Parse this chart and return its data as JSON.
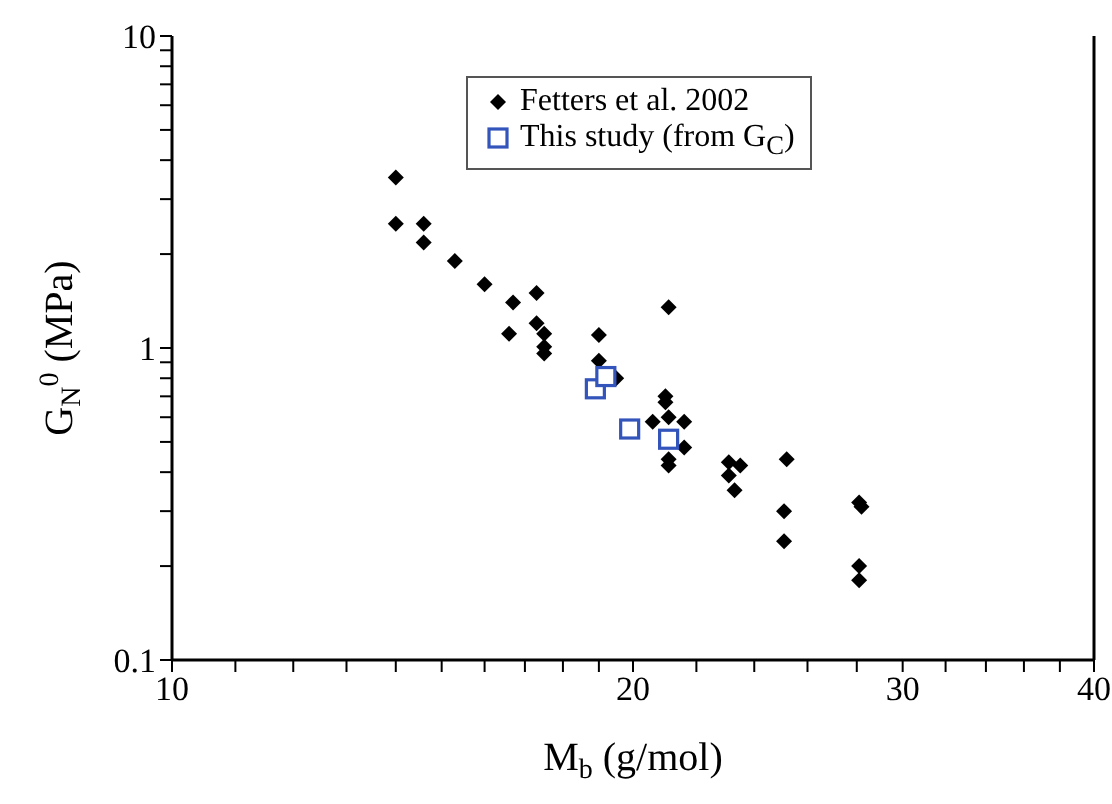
{
  "chart_data": {
    "type": "scatter",
    "xlabel": "M$_{b}$ (g/mol)",
    "ylabel": "G$_{N}$$^{0}$ (MPa)",
    "log": "xy",
    "xlim": [
      10,
      40
    ],
    "ylim": [
      0.1,
      10
    ],
    "xticks": [
      10,
      {
        "value": 11,
        "label": null
      },
      {
        "value": 12,
        "label": null
      },
      {
        "value": 13,
        "label": null
      },
      {
        "value": 14,
        "label": null
      },
      {
        "value": 15,
        "label": null
      },
      {
        "value": 16,
        "label": null
      },
      {
        "value": 17,
        "label": null
      },
      {
        "value": 18,
        "label": null
      },
      {
        "value": 19,
        "label": null
      },
      20,
      {
        "value": 22,
        "label": null
      },
      {
        "value": 24,
        "label": null
      },
      {
        "value": 26,
        "label": null
      },
      {
        "value": 28,
        "label": null
      },
      30,
      {
        "value": 32,
        "label": null
      },
      {
        "value": 34,
        "label": null
      },
      {
        "value": 36,
        "label": null
      },
      {
        "value": 38,
        "label": null
      },
      40
    ],
    "yticks": [
      0.1,
      {
        "value": 0.2,
        "label": null
      },
      {
        "value": 0.3,
        "label": null
      },
      {
        "value": 0.4,
        "label": null
      },
      {
        "value": 0.5,
        "label": null
      },
      {
        "value": 0.6,
        "label": null
      },
      {
        "value": 0.7,
        "label": null
      },
      {
        "value": 0.8,
        "label": null
      },
      {
        "value": 0.9,
        "label": null
      },
      1,
      {
        "value": 2,
        "label": null
      },
      {
        "value": 3,
        "label": null
      },
      {
        "value": 4,
        "label": null
      },
      {
        "value": 5,
        "label": null
      },
      {
        "value": 6,
        "label": null
      },
      {
        "value": 7,
        "label": null
      },
      {
        "value": 8,
        "label": null
      },
      {
        "value": 9,
        "label": null
      },
      10
    ],
    "grid": false,
    "legend": "top",
    "series": [
      {
        "name": "Fetters et al. 2002",
        "color": "#000000",
        "marker": "diamond",
        "x": [
          14.0,
          14.0,
          14.6,
          14.6,
          15.3,
          16.0,
          16.7,
          16.6,
          17.3,
          17.3,
          17.5,
          17.5,
          17.5,
          19.0,
          19.0,
          19.5,
          21.1,
          21.0,
          21.0,
          20.6,
          21.1,
          21.6,
          21.6,
          21.1,
          21.1,
          23.1,
          23.1,
          23.5,
          23.3,
          25.2,
          25.1,
          25.1,
          28.1,
          28.2,
          28.1,
          28.1
        ],
        "values": [
          3.52,
          2.5,
          2.5,
          2.18,
          1.9,
          1.6,
          1.4,
          1.11,
          1.5,
          1.2,
          1.11,
          1.01,
          0.96,
          1.1,
          0.91,
          0.8,
          1.35,
          0.7,
          0.67,
          0.58,
          0.6,
          0.58,
          0.48,
          0.44,
          0.42,
          0.43,
          0.39,
          0.42,
          0.35,
          0.44,
          0.3,
          0.24,
          0.32,
          0.31,
          0.2,
          0.18
        ]
      },
      {
        "name": "This study (from G$_{C}$)",
        "color": "#3355bb",
        "marker": "square",
        "x": [
          18.9,
          19.2,
          19.9,
          21.1
        ],
        "values": [
          0.74,
          0.81,
          0.55,
          0.51
        ]
      }
    ]
  }
}
